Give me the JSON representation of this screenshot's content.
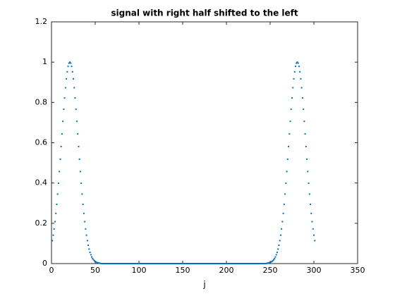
{
  "chart_data": {
    "type": "scatter",
    "title": "signal with right half shifted to the left",
    "x_label": "j",
    "color": "#0072bd",
    "xlim": [
      0,
      350
    ],
    "xticks": [
      0,
      50,
      100,
      150,
      200,
      250,
      300,
      350
    ],
    "ylim": [
      0,
      1.2
    ],
    "yticks": [
      0,
      0.2,
      0.4,
      0.6,
      0.8,
      1,
      1.2
    ],
    "x": [
      1,
      2,
      3,
      4,
      5,
      6,
      7,
      8,
      9,
      10,
      11,
      12,
      13,
      14,
      15,
      16,
      17,
      18,
      19,
      20,
      21,
      22,
      23,
      24,
      25,
      26,
      27,
      28,
      29,
      30,
      31,
      32,
      33,
      34,
      35,
      36,
      37,
      38,
      39,
      40,
      41,
      42,
      43,
      44,
      45,
      46,
      47,
      48,
      49,
      50,
      51,
      52,
      53,
      54,
      55,
      56,
      57,
      58,
      59,
      60,
      61,
      62,
      63,
      64,
      65,
      66,
      67,
      68,
      69,
      70,
      71,
      72,
      73,
      74,
      75,
      76,
      77,
      78,
      79,
      80,
      81,
      82,
      83,
      84,
      85,
      86,
      87,
      88,
      89,
      90,
      91,
      92,
      93,
      94,
      95,
      96,
      97,
      98,
      99,
      100,
      101,
      102,
      103,
      104,
      105,
      106,
      107,
      108,
      109,
      110,
      111,
      112,
      113,
      114,
      115,
      116,
      117,
      118,
      119,
      120,
      121,
      122,
      123,
      124,
      125,
      126,
      127,
      128,
      129,
      130,
      131,
      132,
      133,
      134,
      135,
      136,
      137,
      138,
      139,
      140,
      141,
      142,
      143,
      144,
      145,
      146,
      147,
      148,
      149,
      150,
      151,
      152,
      153,
      154,
      155,
      156,
      157,
      158,
      159,
      160,
      161,
      162,
      163,
      164,
      165,
      166,
      167,
      168,
      169,
      170,
      171,
      172,
      173,
      174,
      175,
      176,
      177,
      178,
      179,
      180,
      181,
      182,
      183,
      184,
      185,
      186,
      187,
      188,
      189,
      190,
      191,
      192,
      193,
      194,
      195,
      196,
      197,
      198,
      199,
      200,
      201,
      202,
      203,
      204,
      205,
      206,
      207,
      208,
      209,
      210,
      211,
      212,
      213,
      214,
      215,
      216,
      217,
      218,
      219,
      220,
      221,
      222,
      223,
      224,
      225,
      226,
      227,
      228,
      229,
      230,
      231,
      232,
      233,
      234,
      235,
      236,
      237,
      238,
      239,
      240,
      241,
      242,
      243,
      244,
      245,
      246,
      247,
      248,
      249,
      250,
      251,
      252,
      253,
      254,
      255,
      256,
      257,
      258,
      259,
      260,
      261,
      262,
      263,
      264,
      265,
      266,
      267,
      268,
      269,
      270,
      271,
      272,
      273,
      274,
      275,
      276,
      277,
      278,
      279,
      280,
      281,
      282,
      283,
      284,
      285,
      286,
      287,
      288,
      289,
      290,
      291,
      292,
      293,
      294,
      295,
      296,
      297,
      298,
      299,
      300,
      301
    ],
    "values": [
      0.114,
      0.141,
      0.172,
      0.208,
      0.249,
      0.294,
      0.345,
      0.399,
      0.457,
      0.518,
      0.581,
      0.644,
      0.706,
      0.766,
      0.822,
      0.873,
      0.917,
      0.952,
      0.979,
      0.995,
      1,
      0.995,
      0.979,
      0.952,
      0.917,
      0.873,
      0.822,
      0.766,
      0.706,
      0.644,
      0.581,
      0.518,
      0.457,
      0.399,
      0.345,
      0.294,
      0.249,
      0.208,
      0.172,
      0.141,
      0.114,
      0.091,
      0.072,
      0.056,
      0.044,
      0.033,
      0.025,
      0.019,
      0.014,
      0.01,
      0.008,
      0.005,
      0.004,
      0.003,
      0.002,
      0.001,
      0,
      0,
      0,
      0,
      0,
      0,
      0,
      0,
      0,
      0,
      0,
      0,
      0,
      0,
      0,
      0,
      0,
      0,
      0,
      0,
      0,
      0,
      0,
      0,
      0,
      0,
      0,
      0,
      0,
      0,
      0,
      0,
      0,
      0,
      0,
      0,
      0,
      0,
      0,
      0,
      0,
      0,
      0,
      0,
      0,
      0,
      0,
      0,
      0,
      0,
      0,
      0,
      0,
      0,
      0,
      0,
      0,
      0,
      0,
      0,
      0,
      0,
      0,
      0,
      0,
      0,
      0,
      0,
      0,
      0,
      0,
      0,
      0,
      0,
      0,
      0,
      0,
      0,
      0,
      0,
      0,
      0,
      0,
      0,
      0,
      0,
      0,
      0,
      0,
      0,
      0,
      0,
      0,
      0,
      0,
      0,
      0,
      0,
      0,
      0,
      0,
      0,
      0,
      0,
      0,
      0,
      0,
      0,
      0,
      0,
      0,
      0,
      0,
      0,
      0,
      0,
      0,
      0,
      0,
      0,
      0,
      0,
      0,
      0,
      0,
      0,
      0,
      0,
      0,
      0,
      0,
      0,
      0,
      0,
      0,
      0,
      0,
      0,
      0,
      0,
      0,
      0,
      0,
      0,
      0,
      0,
      0,
      0,
      0,
      0,
      0,
      0,
      0,
      0,
      0,
      0,
      0,
      0,
      0,
      0,
      0,
      0,
      0,
      0,
      0,
      0,
      0,
      0,
      0,
      0,
      0,
      0,
      0,
      0,
      0,
      0,
      0,
      0,
      0,
      0,
      0,
      0,
      0,
      0,
      0,
      0,
      0,
      0,
      0,
      0.001,
      0.002,
      0.003,
      0.004,
      0.005,
      0.008,
      0.01,
      0.014,
      0.019,
      0.025,
      0.033,
      0.044,
      0.056,
      0.072,
      0.091,
      0.114,
      0.141,
      0.172,
      0.208,
      0.249,
      0.294,
      0.345,
      0.399,
      0.457,
      0.518,
      0.581,
      0.644,
      0.706,
      0.766,
      0.822,
      0.873,
      0.917,
      0.952,
      0.979,
      0.995,
      1,
      0.995,
      0.979,
      0.952,
      0.917,
      0.873,
      0.822,
      0.766,
      0.706,
      0.644,
      0.581,
      0.518,
      0.457,
      0.399,
      0.345,
      0.294,
      0.249,
      0.208,
      0.172,
      0.141,
      0.114
    ]
  }
}
